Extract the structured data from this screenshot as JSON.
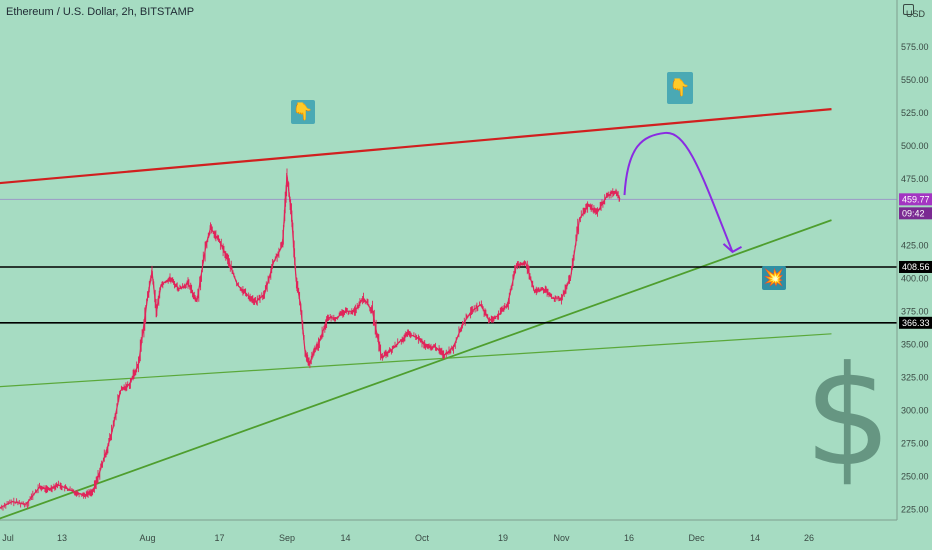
{
  "title": "Ethereum / U.S. Dollar, 2h, BITSTAMP",
  "currency": "USD",
  "icons": {
    "pointer": "pointing-down-hand-icon",
    "explosion": "explosion-icon",
    "dollar": "dollar-sign-icon",
    "settings": "chart-settings-icon"
  },
  "colors": {
    "background": "#a6dcc2",
    "price_line": "#e0255a",
    "resistance": "#d11f1f",
    "support": "#4e9e2e",
    "projection": "#8a2be2",
    "current_price_tag": "#a335c2"
  },
  "current_price": {
    "price": "459.77",
    "countdown": "09:42"
  },
  "horizontal_levels": [
    {
      "price": 408.56,
      "label": "408.56"
    },
    {
      "price": 366.33,
      "label": "366.33"
    }
  ],
  "chart_data": {
    "type": "line",
    "title": "Ethereum / U.S. Dollar, 2h, BITSTAMP",
    "ylim": [
      205,
      600
    ],
    "y_ticks": [
      "225.00",
      "250.00",
      "275.00",
      "300.00",
      "325.00",
      "350.00",
      "375.00",
      "400.00",
      "425.00",
      "450.00",
      "475.00",
      "500.00",
      "525.00",
      "550.00",
      "575.00"
    ],
    "x_ticks": [
      {
        "label": "Jul",
        "date": "2020-07-01"
      },
      {
        "label": "13",
        "date": "2020-07-13"
      },
      {
        "label": "Aug",
        "date": "2020-08-01"
      },
      {
        "label": "17",
        "date": "2020-08-17"
      },
      {
        "label": "Sep",
        "date": "2020-09-01"
      },
      {
        "label": "14",
        "date": "2020-09-14"
      },
      {
        "label": "Oct",
        "date": "2020-10-01"
      },
      {
        "label": "19",
        "date": "2020-10-19"
      },
      {
        "label": "Nov",
        "date": "2020-11-01"
      },
      {
        "label": "16",
        "date": "2020-11-16"
      },
      {
        "label": "Dec",
        "date": "2020-12-01"
      },
      {
        "label": "14",
        "date": "2020-12-14"
      },
      {
        "label": "26",
        "date": "2020-12-26"
      }
    ],
    "series": [
      {
        "values": [
          [
            "2020-06-29",
            226
          ],
          [
            "2020-07-02",
            231
          ],
          [
            "2020-07-05",
            229
          ],
          [
            "2020-07-08",
            242
          ],
          [
            "2020-07-10",
            240
          ],
          [
            "2020-07-12",
            244
          ],
          [
            "2020-07-14",
            241
          ],
          [
            "2020-07-16",
            238
          ],
          [
            "2020-07-18",
            236
          ],
          [
            "2020-07-20",
            239
          ],
          [
            "2020-07-22",
            260
          ],
          [
            "2020-07-24",
            282
          ],
          [
            "2020-07-26",
            315
          ],
          [
            "2020-07-28",
            320
          ],
          [
            "2020-07-30",
            335
          ],
          [
            "2020-08-01",
            385
          ],
          [
            "2020-08-02",
            405
          ],
          [
            "2020-08-03",
            375
          ],
          [
            "2020-08-04",
            395
          ],
          [
            "2020-08-06",
            400
          ],
          [
            "2020-08-08",
            392
          ],
          [
            "2020-08-10",
            396
          ],
          [
            "2020-08-12",
            383
          ],
          [
            "2020-08-14",
            425
          ],
          [
            "2020-08-15",
            438
          ],
          [
            "2020-08-17",
            428
          ],
          [
            "2020-08-19",
            413
          ],
          [
            "2020-08-21",
            395
          ],
          [
            "2020-08-23",
            388
          ],
          [
            "2020-08-25",
            382
          ],
          [
            "2020-08-27",
            388
          ],
          [
            "2020-08-29",
            412
          ],
          [
            "2020-08-31",
            425
          ],
          [
            "2020-09-01",
            478
          ],
          [
            "2020-09-02",
            448
          ],
          [
            "2020-09-03",
            400
          ],
          [
            "2020-09-04",
            380
          ],
          [
            "2020-09-05",
            345
          ],
          [
            "2020-09-06",
            335
          ],
          [
            "2020-09-07",
            345
          ],
          [
            "2020-09-08",
            350
          ],
          [
            "2020-09-10",
            370
          ],
          [
            "2020-09-12",
            370
          ],
          [
            "2020-09-14",
            375
          ],
          [
            "2020-09-16",
            375
          ],
          [
            "2020-09-18",
            385
          ],
          [
            "2020-09-20",
            375
          ],
          [
            "2020-09-22",
            340
          ],
          [
            "2020-09-24",
            345
          ],
          [
            "2020-09-26",
            352
          ],
          [
            "2020-09-28",
            358
          ],
          [
            "2020-09-30",
            355
          ],
          [
            "2020-10-02",
            348
          ],
          [
            "2020-10-04",
            348
          ],
          [
            "2020-10-06",
            342
          ],
          [
            "2020-10-08",
            348
          ],
          [
            "2020-10-10",
            365
          ],
          [
            "2020-10-12",
            375
          ],
          [
            "2020-10-14",
            380
          ],
          [
            "2020-10-16",
            368
          ],
          [
            "2020-10-18",
            372
          ],
          [
            "2020-10-20",
            380
          ],
          [
            "2020-10-22",
            410
          ],
          [
            "2020-10-24",
            412
          ],
          [
            "2020-10-26",
            390
          ],
          [
            "2020-10-28",
            392
          ],
          [
            "2020-10-30",
            385
          ],
          [
            "2020-11-01",
            385
          ],
          [
            "2020-11-03",
            400
          ],
          [
            "2020-11-05",
            445
          ],
          [
            "2020-11-07",
            455
          ],
          [
            "2020-11-09",
            450
          ],
          [
            "2020-11-11",
            462
          ],
          [
            "2020-11-13",
            466
          ],
          [
            "2020-11-14",
            459.77
          ]
        ]
      }
    ],
    "trendlines": [
      {
        "name": "resistance",
        "points": [
          [
            "2020-06-29",
            472
          ],
          [
            "2020-12-31",
            528
          ]
        ]
      },
      {
        "name": "rising support",
        "points": [
          [
            "2020-06-29",
            218
          ],
          [
            "2020-12-31",
            444
          ]
        ]
      },
      {
        "name": "long support",
        "points": [
          [
            "2020-06-29",
            318
          ],
          [
            "2020-12-31",
            358
          ]
        ]
      }
    ],
    "projection_arrow": {
      "points": [
        [
          "2020-11-15",
          463
        ],
        [
          "2020-11-19",
          508
        ],
        [
          "2020-11-24",
          510
        ],
        [
          "2020-12-02",
          470
        ],
        [
          "2020-12-09",
          420
        ]
      ]
    },
    "annotations": [
      {
        "type": "pointing-down-hand-icon",
        "x": "2020-09-01",
        "y": 510
      },
      {
        "type": "pointing-down-hand-icon",
        "x": "2020-11-27",
        "y": 535
      },
      {
        "type": "explosion-icon",
        "x": "2020-12-12",
        "y": 393
      }
    ]
  }
}
